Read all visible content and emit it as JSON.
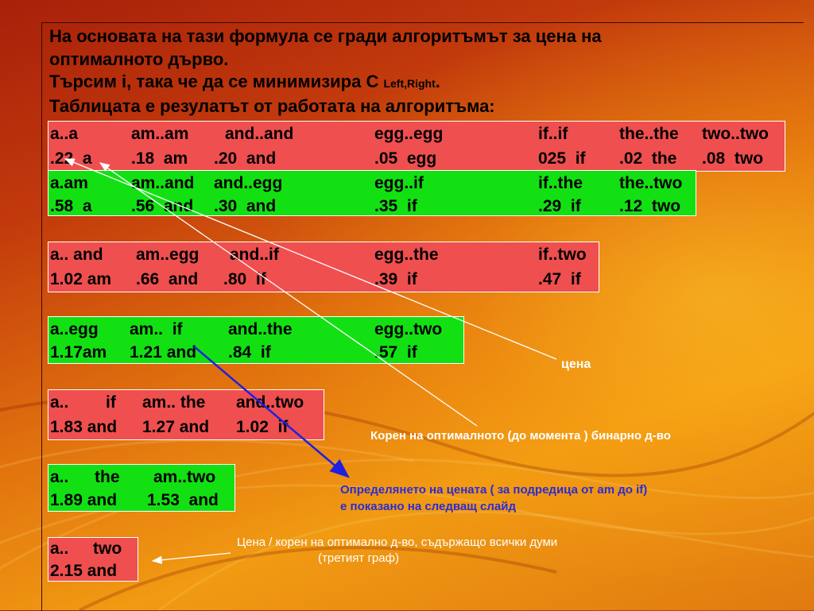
{
  "intro": {
    "line1": "На основата на тази формула се гради алгоритъмът за цена на",
    "line2": "оптималното дърво.",
    "line3_main": "Търсим i, така че да се минимизира C ",
    "line3_sub": "Left,Right",
    "line3_end": ".",
    "line4": "Таблицата е резулатът от работата на алгоритъма:"
  },
  "table": {
    "block1": {
      "row1": [
        "a..a",
        "am..am",
        "and..and",
        "egg..egg",
        "if..if",
        "the..the",
        "two..two"
      ],
      "row2": [
        ".22  a",
        ".18  am",
        ".20  and",
        ".05  egg",
        "025  if",
        ".02  the",
        ".08  two"
      ]
    },
    "block2": {
      "row1": [
        "a.am",
        "am..and",
        "and..egg",
        "egg..if",
        "if..the",
        "the..two"
      ],
      "row2": [
        ".58  a",
        ".56  and",
        ".30  and",
        ".35  if",
        ".29  if",
        ".12  two"
      ]
    },
    "block3": {
      "row1": [
        "a.. and",
        "am..egg",
        "and..if",
        "egg..the",
        "if..two"
      ],
      "row2": [
        "1.02 am",
        ".66  and",
        ".80  if",
        ".39  if",
        ".47  if"
      ]
    },
    "block4": {
      "row1": [
        "a..egg",
        "am..  if",
        "and..the",
        "egg..two"
      ],
      "row2": [
        "1.17am",
        "1.21 and",
        ".84  if",
        ".57  if"
      ]
    },
    "block5": {
      "row1": [
        "a..",
        "if",
        "am.. the",
        "and..two"
      ],
      "row2": [
        "1.83 and",
        "1.27 and",
        "1.02  if"
      ]
    },
    "block6": {
      "row1": [
        "a..",
        "the",
        "am..two"
      ],
      "row2": [
        "1.89 and",
        "1.53  and"
      ]
    },
    "block7": {
      "row1": [
        "a..",
        "two"
      ],
      "row2": [
        "2.15 and"
      ]
    }
  },
  "notes": {
    "price": "цена",
    "root": "Корен на оптималното (до момента ) бинарно д-во",
    "definition_line1": "Определянето на цената ( за подредица от am до if)",
    "definition_line2": "е показано на следващ слайд",
    "full_line1": "Цена / корен на оптимално д-во, съдържащо всички думи",
    "full_line2": "(третият граф)"
  },
  "colors": {
    "red_block": "#ef4f4f",
    "green_block": "#13e013",
    "definition_text": "#2b2bd6",
    "blue_arrow": "#2020e0"
  }
}
